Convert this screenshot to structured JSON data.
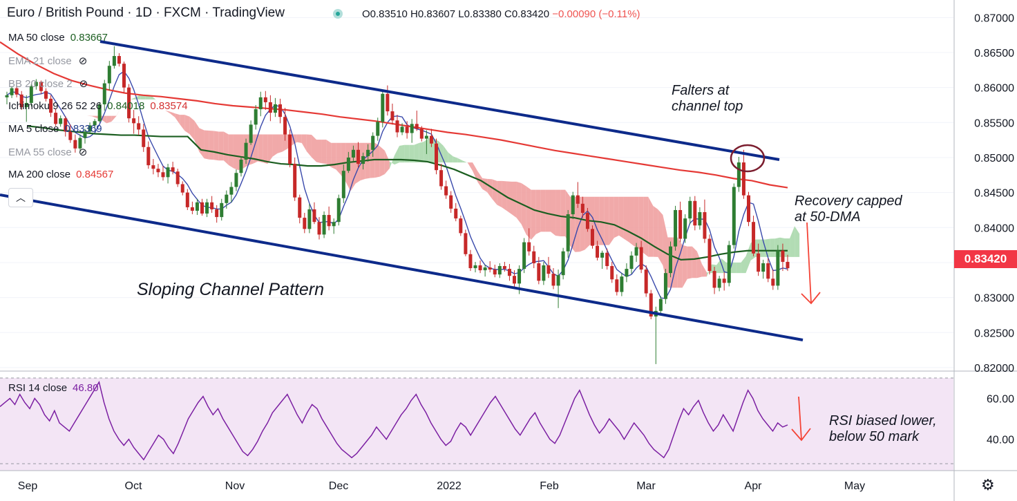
{
  "header": {
    "title": "Euro / British Pound · 1D · FXCM · TradingView",
    "ohlc_label": "O0.83510 H0.83607 L0.83380 C0.83420",
    "change": "−0.00090 (−0.11%)"
  },
  "indicators": [
    {
      "label": "MA 50 close",
      "value": "0.83667",
      "color": "#1b5e20",
      "hidden": false
    },
    {
      "label": "EMA 21 close",
      "value": "",
      "color": "#9598a1",
      "hidden": true
    },
    {
      "label": "BB 20 close 2",
      "value": "",
      "color": "#9598a1",
      "hidden": true
    },
    {
      "label": "Ichimoku 9 26 52 26",
      "value": "0.84018",
      "value2": "0.83574",
      "color": "#1b5e20",
      "color2": "#d32f2f",
      "hidden": false
    },
    {
      "label": "MA 5 close",
      "value": "0.83369",
      "color": "#1e3a8a",
      "hidden": false
    },
    {
      "label": "EMA 55 close",
      "value": "",
      "color": "#9598a1",
      "hidden": true
    },
    {
      "label": "MA 200 close",
      "value": "0.84567",
      "color": "#e53935",
      "hidden": false
    }
  ],
  "annotations": {
    "channel": "Sloping Channel Pattern",
    "falters_1": "Falters at",
    "falters_2": "channel top",
    "recovery_1": "Recovery capped",
    "recovery_2": "at 50-DMA",
    "rsi_1": "RSI biased lower,",
    "rsi_2": "below 50 mark"
  },
  "rsi": {
    "label": "RSI 14 close",
    "value": "46.80",
    "color": "#7b1fa2"
  },
  "last_price": "0.83420",
  "chart_data": {
    "type": "candlestick",
    "title": "Euro / British Pound · 1D · FXCM",
    "y_ticks": [
      "0.87000",
      "0.86500",
      "0.86000",
      "0.85500",
      "0.85000",
      "0.84500",
      "0.84000",
      "0.83500",
      "0.83000",
      "0.82500",
      "0.82000"
    ],
    "ylim": [
      0.8195,
      0.8725
    ],
    "rsi_ticks": [
      "60.00",
      "40.00"
    ],
    "rsi_lim": [
      25,
      70
    ],
    "x_ticks": [
      "Sep",
      "Oct",
      "Nov",
      "Dec",
      "2022",
      "Feb",
      "Mar",
      "Apr",
      "May"
    ],
    "series": [
      {
        "name": "MA 50 close",
        "values": [
          0.8545,
          0.8543,
          0.854,
          0.8538,
          0.8536,
          0.8534,
          0.8533,
          0.8532,
          0.8532,
          0.8531,
          0.853,
          0.853,
          0.853,
          0.8511,
          0.8508,
          0.8504,
          0.8501,
          0.8498,
          0.8494,
          0.8491,
          0.849,
          0.8488,
          0.8488,
          0.849,
          0.8493,
          0.8495,
          0.8497,
          0.8497,
          0.8497,
          0.8496,
          0.8494,
          0.8489,
          0.8483,
          0.8475,
          0.8467,
          0.8455,
          0.8443,
          0.8434,
          0.8425,
          0.842,
          0.8416,
          0.8414,
          0.841,
          0.8408,
          0.8404,
          0.8395,
          0.8385,
          0.8373,
          0.8362,
          0.8354,
          0.8355,
          0.8358,
          0.8362,
          0.8365,
          0.8367,
          0.8367,
          0.8367,
          0.8367
        ]
      },
      {
        "name": "MA 200 close",
        "values": [
          0.8665,
          0.8648,
          0.8633,
          0.862,
          0.861,
          0.8603,
          0.8597,
          0.8592,
          0.8589,
          0.8587,
          0.8584,
          0.8581,
          0.8577,
          0.8574,
          0.8572,
          0.857,
          0.8568,
          0.8565,
          0.8562,
          0.8558,
          0.8555,
          0.8552,
          0.8548,
          0.8544,
          0.854,
          0.8536,
          0.8533,
          0.8529,
          0.8525,
          0.852,
          0.8515,
          0.851,
          0.8506,
          0.8502,
          0.8498,
          0.8494,
          0.849,
          0.8486,
          0.8482,
          0.8479,
          0.8475,
          0.847,
          0.8467,
          0.8461,
          0.8457
        ]
      }
    ],
    "candles": [
      [
        0.8586,
        0.8594,
        0.8576,
        0.8589
      ],
      [
        0.8589,
        0.8602,
        0.8585,
        0.8599
      ],
      [
        0.8599,
        0.8604,
        0.8586,
        0.859
      ],
      [
        0.859,
        0.8595,
        0.8568,
        0.8572
      ],
      [
        0.8572,
        0.8589,
        0.8551,
        0.8578
      ],
      [
        0.8578,
        0.8605,
        0.8573,
        0.8602
      ],
      [
        0.8602,
        0.8612,
        0.8597,
        0.8608
      ],
      [
        0.8608,
        0.861,
        0.8591,
        0.8595
      ],
      [
        0.8595,
        0.8599,
        0.858,
        0.8584
      ],
      [
        0.8584,
        0.8589,
        0.8558,
        0.8564
      ],
      [
        0.8564,
        0.857,
        0.8545,
        0.8548
      ],
      [
        0.8548,
        0.856,
        0.8544,
        0.8556
      ],
      [
        0.8556,
        0.8559,
        0.853,
        0.8537
      ],
      [
        0.8537,
        0.8547,
        0.8521,
        0.8525
      ],
      [
        0.8525,
        0.8533,
        0.8507,
        0.8513
      ],
      [
        0.8513,
        0.8533,
        0.8508,
        0.8528
      ],
      [
        0.8528,
        0.8541,
        0.852,
        0.8537
      ],
      [
        0.8537,
        0.855,
        0.8535,
        0.8546
      ],
      [
        0.8546,
        0.8555,
        0.8542,
        0.8552
      ],
      [
        0.8552,
        0.8579,
        0.855,
        0.8576
      ],
      [
        0.8576,
        0.8611,
        0.8567,
        0.8606
      ],
      [
        0.8606,
        0.8638,
        0.8596,
        0.8631
      ],
      [
        0.8631,
        0.8659,
        0.8627,
        0.8645
      ],
      [
        0.8645,
        0.8649,
        0.863,
        0.8634
      ],
      [
        0.8634,
        0.8637,
        0.8593,
        0.86
      ],
      [
        0.86,
        0.8605,
        0.855,
        0.8556
      ],
      [
        0.8556,
        0.8568,
        0.8534,
        0.8549
      ],
      [
        0.8549,
        0.8559,
        0.8532,
        0.854
      ],
      [
        0.854,
        0.8548,
        0.8508,
        0.8515
      ],
      [
        0.8515,
        0.8523,
        0.8484,
        0.8489
      ],
      [
        0.8489,
        0.8498,
        0.8476,
        0.8484
      ],
      [
        0.8484,
        0.8491,
        0.8472,
        0.8479
      ],
      [
        0.8479,
        0.8488,
        0.8467,
        0.8472
      ],
      [
        0.8472,
        0.8491,
        0.8463,
        0.8486
      ],
      [
        0.8486,
        0.8494,
        0.8476,
        0.848
      ],
      [
        0.848,
        0.8484,
        0.8458,
        0.8462
      ],
      [
        0.8462,
        0.8466,
        0.8446,
        0.845
      ],
      [
        0.845,
        0.8455,
        0.8425,
        0.8429
      ],
      [
        0.8429,
        0.8437,
        0.8419,
        0.8424
      ],
      [
        0.8424,
        0.8441,
        0.8418,
        0.8436
      ],
      [
        0.8436,
        0.8441,
        0.8417,
        0.842
      ],
      [
        0.842,
        0.8441,
        0.8415,
        0.8436
      ],
      [
        0.8436,
        0.8445,
        0.8421,
        0.8426
      ],
      [
        0.8426,
        0.8432,
        0.8407,
        0.8415
      ],
      [
        0.8415,
        0.8441,
        0.841,
        0.8435
      ],
      [
        0.8435,
        0.8453,
        0.8427,
        0.8447
      ],
      [
        0.8447,
        0.8465,
        0.8436,
        0.8458
      ],
      [
        0.8458,
        0.8483,
        0.8452,
        0.8478
      ],
      [
        0.8478,
        0.8502,
        0.8473,
        0.8497
      ],
      [
        0.8497,
        0.8527,
        0.8491,
        0.8521
      ],
      [
        0.8521,
        0.8553,
        0.8518,
        0.8547
      ],
      [
        0.8547,
        0.8575,
        0.854,
        0.8569
      ],
      [
        0.8569,
        0.8594,
        0.8559,
        0.8586
      ],
      [
        0.8586,
        0.8595,
        0.8568,
        0.8579
      ],
      [
        0.8579,
        0.8589,
        0.8552,
        0.8564
      ],
      [
        0.8564,
        0.8585,
        0.8558,
        0.8576
      ],
      [
        0.8576,
        0.8584,
        0.8549,
        0.8558
      ],
      [
        0.8558,
        0.8571,
        0.8524,
        0.8533
      ],
      [
        0.8533,
        0.854,
        0.8486,
        0.8491
      ],
      [
        0.8491,
        0.85,
        0.8438,
        0.8443
      ],
      [
        0.8443,
        0.8447,
        0.8406,
        0.8414
      ],
      [
        0.8414,
        0.8421,
        0.8392,
        0.8398
      ],
      [
        0.8398,
        0.8434,
        0.8392,
        0.8426
      ],
      [
        0.8426,
        0.8436,
        0.8405,
        0.8408
      ],
      [
        0.8408,
        0.8415,
        0.8383,
        0.839
      ],
      [
        0.839,
        0.8423,
        0.8385,
        0.8418
      ],
      [
        0.8418,
        0.843,
        0.8396,
        0.8402
      ],
      [
        0.8402,
        0.8413,
        0.8391,
        0.8408
      ],
      [
        0.8408,
        0.8447,
        0.8403,
        0.8442
      ],
      [
        0.8442,
        0.849,
        0.8435,
        0.8481
      ],
      [
        0.8481,
        0.8508,
        0.8478,
        0.85
      ],
      [
        0.85,
        0.8517,
        0.8495,
        0.8511
      ],
      [
        0.8511,
        0.8522,
        0.8486,
        0.8491
      ],
      [
        0.8491,
        0.8507,
        0.8483,
        0.8502
      ],
      [
        0.8502,
        0.8519,
        0.8494,
        0.8511
      ],
      [
        0.8511,
        0.8536,
        0.8501,
        0.8531
      ],
      [
        0.8531,
        0.8557,
        0.8524,
        0.8551
      ],
      [
        0.8551,
        0.8597,
        0.8543,
        0.8591
      ],
      [
        0.8591,
        0.8603,
        0.856,
        0.8566
      ],
      [
        0.8566,
        0.8577,
        0.8547,
        0.8553
      ],
      [
        0.8553,
        0.8561,
        0.8529,
        0.8536
      ],
      [
        0.8536,
        0.8549,
        0.8532,
        0.8544
      ],
      [
        0.8544,
        0.8552,
        0.8527,
        0.8535
      ],
      [
        0.8535,
        0.8555,
        0.8521,
        0.8548
      ],
      [
        0.8548,
        0.8567,
        0.8538,
        0.8541
      ],
      [
        0.8541,
        0.8545,
        0.8523,
        0.8527
      ],
      [
        0.8527,
        0.8539,
        0.8505,
        0.8531
      ],
      [
        0.8531,
        0.8541,
        0.8515,
        0.852
      ],
      [
        0.852,
        0.8527,
        0.8476,
        0.8482
      ],
      [
        0.8482,
        0.8491,
        0.8454,
        0.8459
      ],
      [
        0.8459,
        0.8467,
        0.8441,
        0.8446
      ],
      [
        0.8446,
        0.8452,
        0.8421,
        0.8427
      ],
      [
        0.8427,
        0.8435,
        0.8409,
        0.8413
      ],
      [
        0.8413,
        0.8417,
        0.8388,
        0.8392
      ],
      [
        0.8392,
        0.8397,
        0.8359,
        0.8362
      ],
      [
        0.8362,
        0.8368,
        0.8338,
        0.8342
      ],
      [
        0.8342,
        0.8351,
        0.8336,
        0.8346
      ],
      [
        0.8346,
        0.8353,
        0.8335,
        0.8339
      ],
      [
        0.8339,
        0.8347,
        0.833,
        0.8343
      ],
      [
        0.8343,
        0.8352,
        0.8336,
        0.834
      ],
      [
        0.834,
        0.8347,
        0.8329,
        0.8333
      ],
      [
        0.8333,
        0.8349,
        0.8328,
        0.8345
      ],
      [
        0.8345,
        0.8351,
        0.8337,
        0.8341
      ],
      [
        0.8341,
        0.8348,
        0.8324,
        0.8331
      ],
      [
        0.8331,
        0.8339,
        0.8315,
        0.832
      ],
      [
        0.832,
        0.8346,
        0.8305,
        0.8341
      ],
      [
        0.8341,
        0.8385,
        0.8335,
        0.8379
      ],
      [
        0.8379,
        0.8399,
        0.836,
        0.8366
      ],
      [
        0.8366,
        0.8374,
        0.8342,
        0.8349
      ],
      [
        0.8349,
        0.8358,
        0.8319,
        0.8324
      ],
      [
        0.8324,
        0.8351,
        0.8318,
        0.8346
      ],
      [
        0.8346,
        0.8358,
        0.8328,
        0.8334
      ],
      [
        0.8334,
        0.8342,
        0.8312,
        0.8317
      ],
      [
        0.8317,
        0.834,
        0.8285,
        0.8332
      ],
      [
        0.8332,
        0.8371,
        0.8326,
        0.8366
      ],
      [
        0.8366,
        0.8425,
        0.8357,
        0.8419
      ],
      [
        0.8419,
        0.8451,
        0.8412,
        0.8446
      ],
      [
        0.8446,
        0.8465,
        0.8428,
        0.8434
      ],
      [
        0.8434,
        0.8444,
        0.8414,
        0.8421
      ],
      [
        0.8421,
        0.8428,
        0.8394,
        0.8398
      ],
      [
        0.8398,
        0.8403,
        0.837,
        0.8374
      ],
      [
        0.8374,
        0.8381,
        0.8353,
        0.8357
      ],
      [
        0.8357,
        0.8367,
        0.8341,
        0.8364
      ],
      [
        0.8364,
        0.837,
        0.834,
        0.8345
      ],
      [
        0.8345,
        0.8351,
        0.8321,
        0.8326
      ],
      [
        0.8326,
        0.8333,
        0.8303,
        0.8308
      ],
      [
        0.8308,
        0.8335,
        0.8302,
        0.833
      ],
      [
        0.833,
        0.8349,
        0.8322,
        0.8341
      ],
      [
        0.8341,
        0.8366,
        0.8334,
        0.836
      ],
      [
        0.836,
        0.8378,
        0.8351,
        0.8372
      ],
      [
        0.8372,
        0.8381,
        0.8335,
        0.834
      ],
      [
        0.834,
        0.8346,
        0.8301,
        0.8306
      ],
      [
        0.8306,
        0.8311,
        0.8269,
        0.8273
      ],
      [
        0.8273,
        0.8287,
        0.8205,
        0.8281
      ],
      [
        0.8281,
        0.8302,
        0.8275,
        0.8298
      ],
      [
        0.8298,
        0.8341,
        0.8291,
        0.8335
      ],
      [
        0.8335,
        0.838,
        0.8329,
        0.8373
      ],
      [
        0.8373,
        0.8431,
        0.8367,
        0.8425
      ],
      [
        0.8425,
        0.8437,
        0.8379,
        0.8384
      ],
      [
        0.8384,
        0.8419,
        0.8378,
        0.8413
      ],
      [
        0.8413,
        0.8444,
        0.8405,
        0.8438
      ],
      [
        0.8438,
        0.8445,
        0.8396,
        0.8403
      ],
      [
        0.8403,
        0.8429,
        0.8397,
        0.8422
      ],
      [
        0.8422,
        0.844,
        0.8378,
        0.8384
      ],
      [
        0.8384,
        0.839,
        0.8333,
        0.8338
      ],
      [
        0.8338,
        0.8344,
        0.8305,
        0.8314
      ],
      [
        0.8314,
        0.8331,
        0.8309,
        0.8327
      ],
      [
        0.8327,
        0.8336,
        0.831,
        0.8321
      ],
      [
        0.8321,
        0.8381,
        0.8316,
        0.8375
      ],
      [
        0.8375,
        0.8463,
        0.837,
        0.8458
      ],
      [
        0.8458,
        0.8501,
        0.8451,
        0.8493
      ],
      [
        0.8493,
        0.8511,
        0.8441,
        0.8446
      ],
      [
        0.8446,
        0.8451,
        0.8402,
        0.8408
      ],
      [
        0.8408,
        0.8417,
        0.8359,
        0.8363
      ],
      [
        0.8363,
        0.8377,
        0.8331,
        0.8337
      ],
      [
        0.8337,
        0.8354,
        0.8327,
        0.8349
      ],
      [
        0.8349,
        0.8356,
        0.8322,
        0.8327
      ],
      [
        0.8327,
        0.834,
        0.8311,
        0.8317
      ],
      [
        0.8317,
        0.8375,
        0.8311,
        0.8367
      ],
      [
        0.8367,
        0.8377,
        0.8338,
        0.8351
      ],
      [
        0.8351,
        0.8361,
        0.8338,
        0.8342
      ]
    ],
    "rsi_values": [
      56,
      58,
      60,
      57,
      62,
      58,
      55,
      60,
      57,
      52,
      49,
      54,
      48,
      46,
      44,
      48,
      52,
      56,
      60,
      64,
      68,
      58,
      50,
      44,
      40,
      37,
      40,
      36,
      33,
      30,
      34,
      38,
      42,
      40,
      36,
      33,
      38,
      44,
      50,
      54,
      58,
      61,
      56,
      52,
      55,
      50,
      46,
      42,
      38,
      34,
      32,
      35,
      39,
      44,
      48,
      53,
      56,
      59,
      62,
      57,
      52,
      48,
      53,
      57,
      55,
      50,
      46,
      42,
      38,
      35,
      33,
      31,
      33,
      36,
      39,
      42,
      46,
      43,
      40,
      44,
      48,
      52,
      55,
      59,
      62,
      57,
      53,
      48,
      44,
      40,
      37,
      39,
      44,
      48,
      46,
      42,
      46,
      50,
      54,
      58,
      61,
      57,
      53,
      49,
      45,
      42,
      46,
      50,
      53,
      48,
      44,
      40,
      38,
      42,
      48,
      54,
      60,
      64,
      58,
      52,
      47,
      43,
      46,
      50,
      47,
      44,
      40,
      44,
      48,
      45,
      42,
      38,
      35,
      33,
      31,
      35,
      42,
      49,
      55,
      52,
      56,
      59,
      53,
      48,
      44,
      47,
      52,
      48,
      44,
      51,
      58,
      64,
      60,
      54,
      50,
      47,
      44,
      48,
      46,
      47
    ]
  }
}
